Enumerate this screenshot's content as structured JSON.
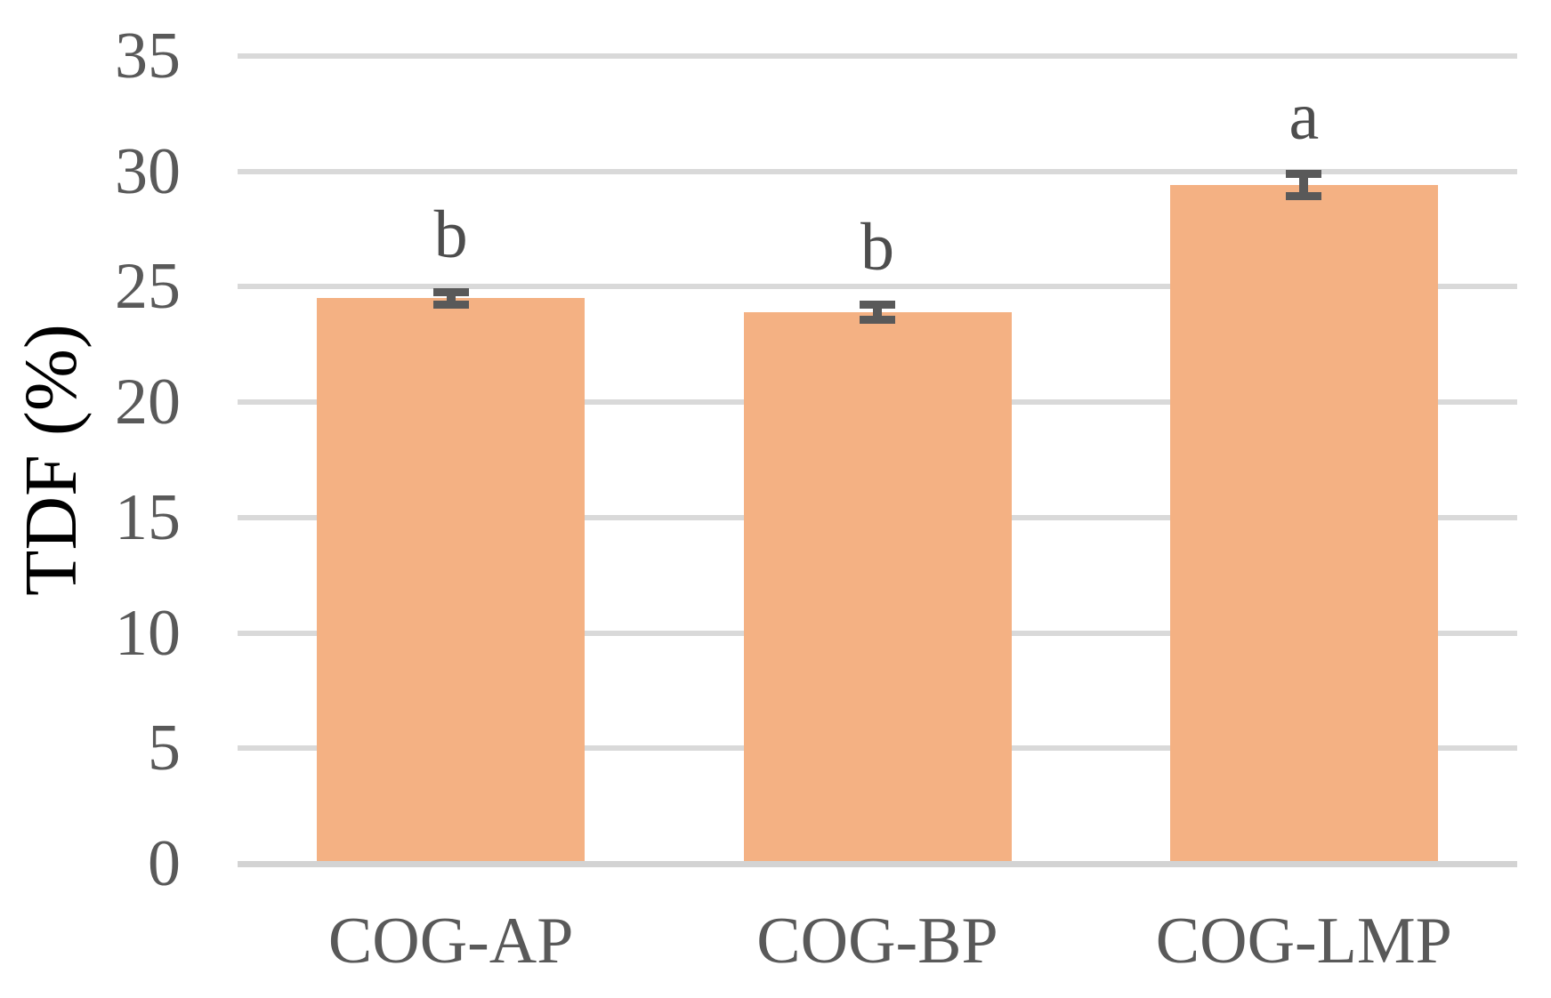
{
  "chart_data": {
    "type": "bar",
    "title": "",
    "ylabel": "TDF (%)",
    "xlabel": "",
    "categories": [
      "COG-AP",
      "COG-BP",
      "COG-LMP"
    ],
    "values": [
      24.5,
      23.9,
      29.4
    ],
    "error_bars": [
      0.45,
      0.5,
      0.65
    ],
    "sig_letters": [
      "b",
      "b",
      "a"
    ],
    "ylim": [
      0,
      35
    ],
    "ytick_step": 5,
    "ytick_labels": [
      "0",
      "5",
      "10",
      "15",
      "20",
      "25",
      "30",
      "35"
    ],
    "grid": "horizontal-only",
    "legend": "none",
    "colors": {
      "bar_fill": "#F4B183",
      "error_bar": "#595959",
      "gridline": "#D9D9D9",
      "baseline": "#D3D3D3",
      "axis_text": "#595959",
      "letter_text": "#4D4D4D",
      "background": "#FFFFFF"
    }
  }
}
